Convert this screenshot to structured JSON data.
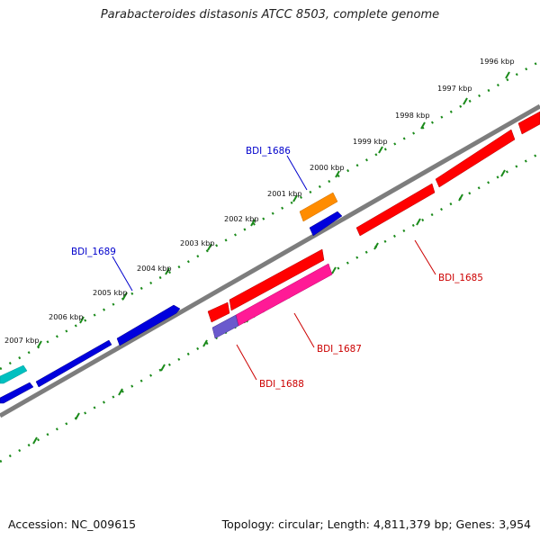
{
  "header": {
    "title": "Parabacteroides distasonis ATCC 8503, complete genome"
  },
  "footer": {
    "accession": "Accession: NC_009615",
    "summary": "Topology: circular; Length: 4,811,379 bp; Genes: 3,954"
  },
  "map": {
    "kbp_labels": [
      "1996 kbp",
      "1997 kbp",
      "1998 kbp",
      "1999 kbp",
      "2000 kbp",
      "2001 kbp",
      "2002 kbp",
      "2003 kbp",
      "2004 kbp",
      "2005 kbp",
      "2006 kbp",
      "2007 kbp"
    ],
    "gene_labels": {
      "bdi_1686": "BDI_1686",
      "bdi_1689": "BDI_1689",
      "bdi_1685": "BDI_1685",
      "bdi_1687": "BDI_1687",
      "bdi_1688": "BDI_1688"
    },
    "colors": {
      "forward_label": "#0000cc",
      "reverse_label": "#cc0000",
      "red": "#ff0000",
      "blue": "#0000ee",
      "orange": "#ff8c00",
      "magenta": "#ff1493",
      "purple": "#6a5acd",
      "cyan": "#00c8c8",
      "backbone": "#808080",
      "ticks": "#228b22"
    }
  }
}
